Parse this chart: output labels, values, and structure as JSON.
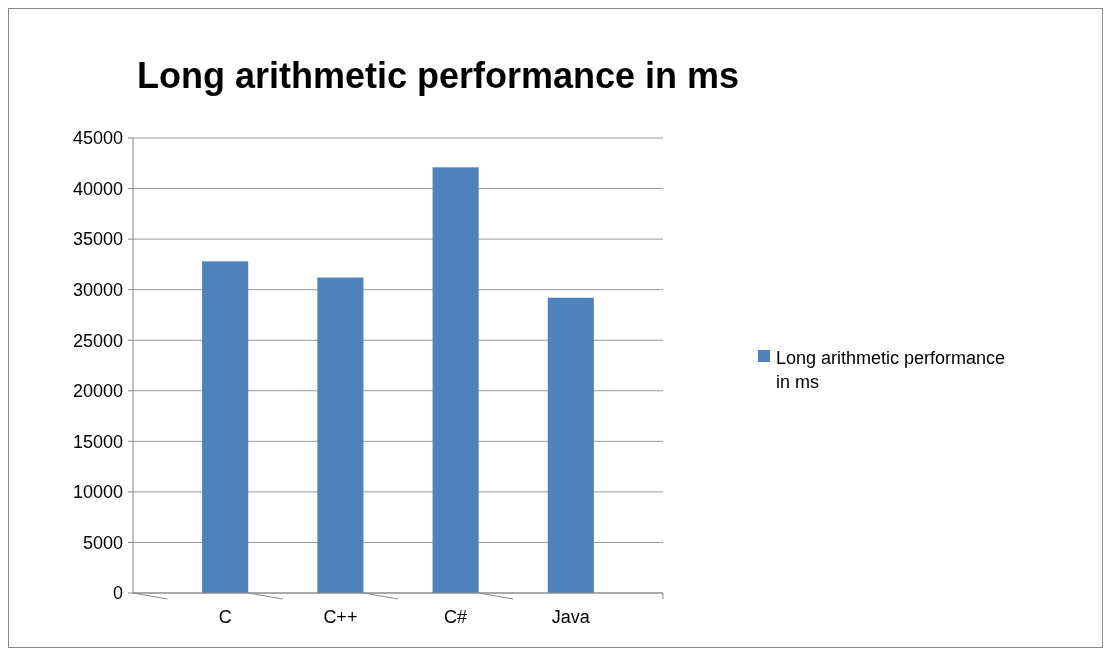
{
  "chart_data": {
    "type": "bar",
    "title": "Long arithmetic performance in ms",
    "categories": [
      "C",
      "C++",
      "C#",
      "Java"
    ],
    "series": [
      {
        "name": "Long arithmetic performance in ms",
        "color": "#4f81bd",
        "values": [
          32800,
          31200,
          42100,
          29200
        ]
      }
    ],
    "ylim": [
      0,
      45000
    ],
    "yticks": [
      0,
      5000,
      10000,
      15000,
      20000,
      25000,
      30000,
      35000,
      40000,
      45000
    ],
    "grid": "y",
    "legend": "right"
  }
}
